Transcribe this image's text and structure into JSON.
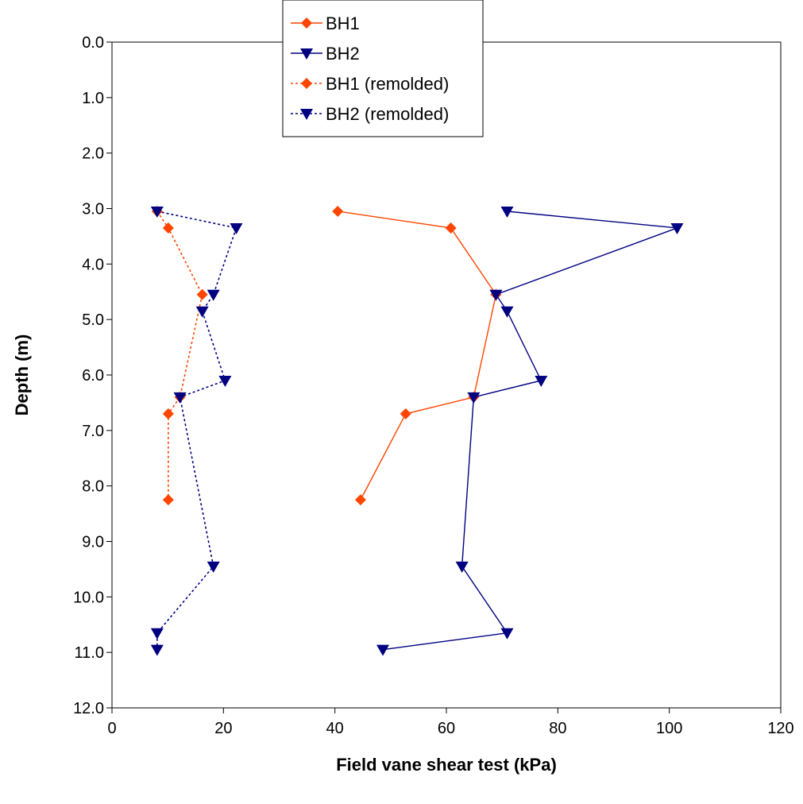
{
  "chart_data": {
    "type": "line",
    "xlabel": "Field vane shear test (kPa)",
    "ylabel": "Depth (m)",
    "xlim": [
      0,
      120
    ],
    "ylim": [
      0,
      12
    ],
    "y_inverted": true,
    "x_ticks": [
      0,
      20,
      40,
      60,
      80,
      100,
      120
    ],
    "y_ticks": [
      "0.0",
      "1.0",
      "2.0",
      "3.0",
      "4.0",
      "5.0",
      "6.0",
      "7.0",
      "8.0",
      "9.0",
      "10.0",
      "11.0",
      "12.0"
    ],
    "grid": false,
    "legend_position": "top-center",
    "series": [
      {
        "name": "BH1",
        "marker": "diamond",
        "line": "solid",
        "color": "#ff4500",
        "points": [
          [
            40.5,
            3.05
          ],
          [
            60.8,
            3.35
          ],
          [
            68.9,
            4.55
          ],
          [
            64.9,
            6.4
          ],
          [
            52.7,
            6.7
          ],
          [
            44.6,
            8.25
          ]
        ]
      },
      {
        "name": "BH2",
        "marker": "triangle-down",
        "line": "solid",
        "color": "#000080",
        "points": [
          [
            70.9,
            3.05
          ],
          [
            101.4,
            3.35
          ],
          [
            68.9,
            4.55
          ],
          [
            70.9,
            4.85
          ],
          [
            77.0,
            6.1
          ],
          [
            64.9,
            6.4
          ],
          [
            62.8,
            9.45
          ],
          [
            70.9,
            10.65
          ],
          [
            48.6,
            10.95
          ]
        ]
      },
      {
        "name": "BH1 (remolded)",
        "marker": "diamond",
        "line": "dotted",
        "color": "#ff4500",
        "points": [
          [
            8.1,
            3.05
          ],
          [
            10.1,
            3.35
          ],
          [
            16.2,
            4.55
          ],
          [
            12.2,
            6.4
          ],
          [
            10.1,
            6.7
          ],
          [
            10.1,
            8.25
          ]
        ]
      },
      {
        "name": "BH2 (remolded)",
        "marker": "triangle-down",
        "line": "dotted",
        "color": "#000080",
        "points": [
          [
            8.1,
            3.05
          ],
          [
            22.3,
            3.35
          ],
          [
            18.2,
            4.55
          ],
          [
            16.2,
            4.85
          ],
          [
            20.3,
            6.1
          ],
          [
            12.2,
            6.4
          ],
          [
            18.2,
            9.45
          ],
          [
            8.1,
            10.65
          ],
          [
            8.1,
            10.95
          ]
        ]
      }
    ]
  }
}
